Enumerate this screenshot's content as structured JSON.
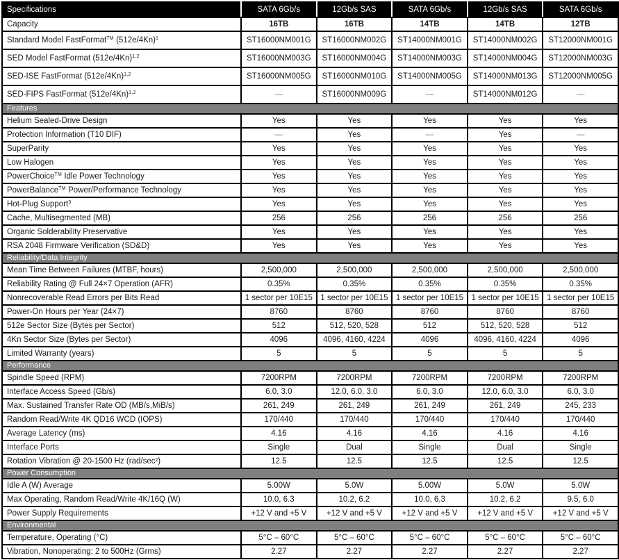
{
  "colors": {
    "header_bg": "#000000",
    "header_text": "#ffffff",
    "section_bg": "#7f7f7f",
    "section_text": "#ffffff",
    "border": "#000000",
    "cell_bg": "#ffffff",
    "text": "#1a1a1a",
    "dash_text": "#757575"
  },
  "table": {
    "corner_label": "Specifications",
    "column_headers": [
      "SATA 6Gb/s",
      "12Gb/s SAS",
      "SATA 6Gb/s",
      "12Gb/s SAS",
      "SATA 6Gb/s"
    ],
    "sections": [
      {
        "title": "",
        "rows": [
          {
            "label": "Capacity",
            "values": [
              "16TB",
              "16TB",
              "14TB",
              "14TB",
              "12TB"
            ]
          },
          {
            "label": "Standard Model FastFormat^TM^ (512e/4Kn)^1^",
            "values": [
              "ST16000NM001G",
              "ST16000NM002G",
              "ST14000NM001G",
              "ST14000NM002G",
              "ST12000NM001G"
            ]
          },
          {
            "label": "SED Model FastFormat (512e/4Kn)^1,2^",
            "values": [
              "ST16000NM003G",
              "ST16000NM004G",
              "ST14000NM003G",
              "ST14000NM004G",
              "ST12000NM003G"
            ]
          },
          {
            "label": "SED-ISE FastFormat (512e/4Kn)^1,2^",
            "values": [
              "ST16000NM005G",
              "ST16000NM010G",
              "ST14000NM005G",
              "ST14000NM013G",
              "ST12000NM005G"
            ]
          },
          {
            "label": "SED-FIPS FastFormat (512e/4Kn)^1,2^",
            "values": [
              "—",
              "ST16000NM009G",
              "—",
              "ST14000NM012G",
              "—"
            ]
          }
        ]
      },
      {
        "title": "Features",
        "rows": [
          {
            "label": "Helium Sealed-Drive Design",
            "values": [
              "Yes",
              "Yes",
              "Yes",
              "Yes",
              "Yes"
            ]
          },
          {
            "label": "Protection Information (T10 DIF)",
            "values": [
              "—",
              "Yes",
              "—",
              "Yes",
              "—"
            ]
          },
          {
            "label": "SuperParity",
            "values": [
              "Yes",
              "Yes",
              "Yes",
              "Yes",
              "Yes"
            ]
          },
          {
            "label": "Low Halogen",
            "values": [
              "Yes",
              "Yes",
              "Yes",
              "Yes",
              "Yes"
            ]
          },
          {
            "label": "PowerChoice^TM^ Idle Power Technology",
            "values": [
              "Yes",
              "Yes",
              "Yes",
              "Yes",
              "Yes"
            ]
          },
          {
            "label": "PowerBalance^TM^ Power/Performance Technology",
            "values": [
              "Yes",
              "Yes",
              "Yes",
              "Yes",
              "Yes"
            ]
          },
          {
            "label": "Hot-Plug Support^3^",
            "values": [
              "Yes",
              "Yes",
              "Yes",
              "Yes",
              "Yes"
            ]
          },
          {
            "label": "Cache, Multisegmented (MB)",
            "values": [
              "256",
              "256",
              "256",
              "256",
              "256"
            ]
          },
          {
            "label": "Organic Solderability Preservative",
            "values": [
              "Yes",
              "Yes",
              "Yes",
              "Yes",
              "Yes"
            ]
          },
          {
            "label": "RSA 2048 Firmware Verification (SD&D)",
            "values": [
              "Yes",
              "Yes",
              "Yes",
              "Yes",
              "Yes"
            ]
          }
        ]
      },
      {
        "title": "Reliability/Data Integrity",
        "rows": [
          {
            "label": "Mean Time Between Failures (MTBF, hours)",
            "values": [
              "2,500,000",
              "2,500,000",
              "2,500,000",
              "2,500,000",
              "2,500,000"
            ]
          },
          {
            "label": "Reliability Rating @ Full 24×7 Operation (AFR)",
            "values": [
              "0.35%",
              "0.35%",
              "0.35%",
              "0.35%",
              "0.35%"
            ]
          },
          {
            "label": "Nonrecoverable Read Errors per Bits Read",
            "values": [
              "1 sector per 10E15",
              "1 sector per 10E15",
              "1 sector per 10E15",
              "1 sector per 10E15",
              "1 sector per 10E15"
            ]
          },
          {
            "label": "Power-On Hours per Year (24×7)",
            "values": [
              "8760",
              "8760",
              "8760",
              "8760",
              "8760"
            ]
          },
          {
            "label": "512e Sector Size (Bytes per Sector)",
            "values": [
              "512",
              "512, 520, 528",
              "512",
              "512, 520, 528",
              "512"
            ]
          },
          {
            "label": "4Kn Sector Size (Bytes per Sector)",
            "values": [
              "4096",
              "4096, 4160, 4224",
              "4096",
              "4096, 4160, 4224",
              "4096"
            ]
          },
          {
            "label": "Limited Warranty (years)",
            "values": [
              "5",
              "5",
              "5",
              "5",
              "5"
            ]
          }
        ]
      },
      {
        "title": "Performance",
        "rows": [
          {
            "label": "Spindle Speed (RPM)",
            "values": [
              "7200RPM",
              "7200RPM",
              "7200RPM",
              "7200RPM",
              "7200RPM"
            ]
          },
          {
            "label": "Interface Access Speed (Gb/s)",
            "values": [
              "6.0, 3.0",
              "12.0, 6.0, 3.0",
              "6.0, 3.0",
              "12.0, 6.0, 3.0",
              "6.0, 3.0"
            ]
          },
          {
            "label": "Max. Sustained Transfer Rate OD (MB/s,MiB/s)",
            "values": [
              "261, 249",
              "261, 249",
              "261, 249",
              "261, 249",
              "245, 233"
            ]
          },
          {
            "label": "Random Read/Write 4K QD16 WCD (IOPS)",
            "values": [
              "170/440",
              "170/440",
              "170/440",
              "170/440",
              "170/440"
            ]
          },
          {
            "label": "Average Latency (ms)",
            "values": [
              "4.16",
              "4.16",
              "4.16",
              "4.16",
              "4.16"
            ]
          },
          {
            "label": "Interface Ports",
            "values": [
              "Single",
              "Dual",
              "Single",
              "Dual",
              "Single"
            ]
          },
          {
            "label": "Rotation Vibration @ 20-1500 Hz (rad/sec²)",
            "values": [
              "12.5",
              "12.5",
              "12.5",
              "12.5",
              "12.5"
            ]
          }
        ]
      },
      {
        "title": "Power Consumption",
        "rows": [
          {
            "label": "Idle A (W) Average",
            "values": [
              "5.00W",
              "5.0W",
              "5.00W",
              "5.0W",
              "5.0W"
            ]
          },
          {
            "label": "Max Operating, Random Read/Write 4K/16Q (W)",
            "values": [
              "10.0, 6.3",
              "10.2, 6.2",
              "10.0, 6.3",
              "10.2, 6.2",
              "9.5, 6.0"
            ]
          },
          {
            "label": "Power Supply Requirements",
            "values": [
              "+12 V and +5 V",
              "+12 V and +5 V",
              "+12 V and +5 V",
              "+12 V and +5 V",
              "+12 V and +5 V"
            ]
          }
        ]
      },
      {
        "title": "Environmental",
        "rows": [
          {
            "label": "Temperature, Operating (°C)",
            "values": [
              "5°C – 60°C",
              "5°C – 60°C",
              "5°C – 60°C",
              "5°C – 60°C",
              "5°C – 60°C"
            ]
          },
          {
            "label": "Vibration, Nonoperating: 2 to 500Hz (Grms)",
            "values": [
              "2.27",
              "2.27",
              "2.27",
              "2.27",
              "2.27"
            ]
          }
        ]
      }
    ]
  }
}
